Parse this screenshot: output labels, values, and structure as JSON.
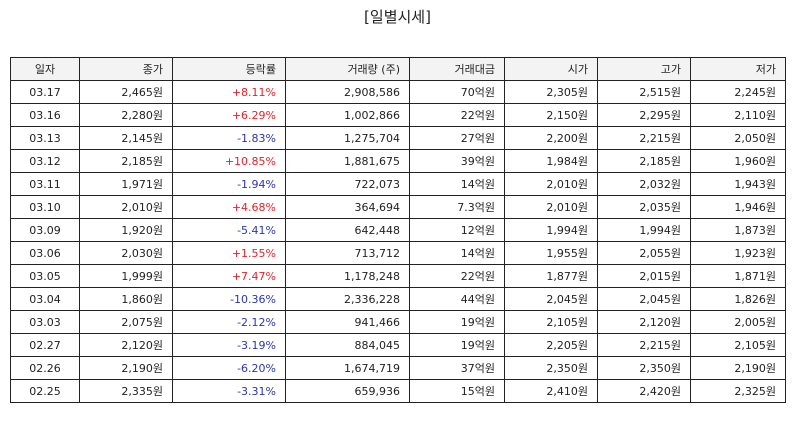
{
  "title": "[일별시세]",
  "columns": [
    "일자",
    "종가",
    "등락률",
    "거래량 (주)",
    "거래대금",
    "시가",
    "고가",
    "저가"
  ],
  "colors": {
    "up": "#e0242c",
    "down": "#2a36b0"
  },
  "rows": [
    {
      "date": "03.17",
      "close": "2,465원",
      "change": "+8.11%",
      "dir": "up",
      "volume": "2,908,586",
      "amount": "70억원",
      "open": "2,305원",
      "high": "2,515원",
      "low": "2,245원"
    },
    {
      "date": "03.16",
      "close": "2,280원",
      "change": "+6.29%",
      "dir": "up",
      "volume": "1,002,866",
      "amount": "22억원",
      "open": "2,150원",
      "high": "2,295원",
      "low": "2,110원"
    },
    {
      "date": "03.13",
      "close": "2,145원",
      "change": "-1.83%",
      "dir": "down",
      "volume": "1,275,704",
      "amount": "27억원",
      "open": "2,200원",
      "high": "2,215원",
      "low": "2,050원"
    },
    {
      "date": "03.12",
      "close": "2,185원",
      "change": "+10.85%",
      "dir": "up",
      "volume": "1,881,675",
      "amount": "39억원",
      "open": "1,984원",
      "high": "2,185원",
      "low": "1,960원"
    },
    {
      "date": "03.11",
      "close": "1,971원",
      "change": "-1.94%",
      "dir": "down",
      "volume": "722,073",
      "amount": "14억원",
      "open": "2,010원",
      "high": "2,032원",
      "low": "1,943원"
    },
    {
      "date": "03.10",
      "close": "2,010원",
      "change": "+4.68%",
      "dir": "up",
      "volume": "364,694",
      "amount": "7.3억원",
      "open": "2,010원",
      "high": "2,035원",
      "low": "1,946원"
    },
    {
      "date": "03.09",
      "close": "1,920원",
      "change": "-5.41%",
      "dir": "down",
      "volume": "642,448",
      "amount": "12억원",
      "open": "1,994원",
      "high": "1,994원",
      "low": "1,873원"
    },
    {
      "date": "03.06",
      "close": "2,030원",
      "change": "+1.55%",
      "dir": "up",
      "volume": "713,712",
      "amount": "14억원",
      "open": "1,955원",
      "high": "2,055원",
      "low": "1,923원"
    },
    {
      "date": "03.05",
      "close": "1,999원",
      "change": "+7.47%",
      "dir": "up",
      "volume": "1,178,248",
      "amount": "22억원",
      "open": "1,877원",
      "high": "2,015원",
      "low": "1,871원"
    },
    {
      "date": "03.04",
      "close": "1,860원",
      "change": "-10.36%",
      "dir": "down",
      "volume": "2,336,228",
      "amount": "44억원",
      "open": "2,045원",
      "high": "2,045원",
      "low": "1,826원"
    },
    {
      "date": "03.03",
      "close": "2,075원",
      "change": "-2.12%",
      "dir": "down",
      "volume": "941,466",
      "amount": "19억원",
      "open": "2,105원",
      "high": "2,120원",
      "low": "2,005원"
    },
    {
      "date": "02.27",
      "close": "2,120원",
      "change": "-3.19%",
      "dir": "down",
      "volume": "884,045",
      "amount": "19억원",
      "open": "2,205원",
      "high": "2,215원",
      "low": "2,105원"
    },
    {
      "date": "02.26",
      "close": "2,190원",
      "change": "-6.20%",
      "dir": "down",
      "volume": "1,674,719",
      "amount": "37억원",
      "open": "2,350원",
      "high": "2,350원",
      "low": "2,190원"
    },
    {
      "date": "02.25",
      "close": "2,335원",
      "change": "-3.31%",
      "dir": "down",
      "volume": "659,936",
      "amount": "15억원",
      "open": "2,410원",
      "high": "2,420원",
      "low": "2,325원"
    }
  ]
}
